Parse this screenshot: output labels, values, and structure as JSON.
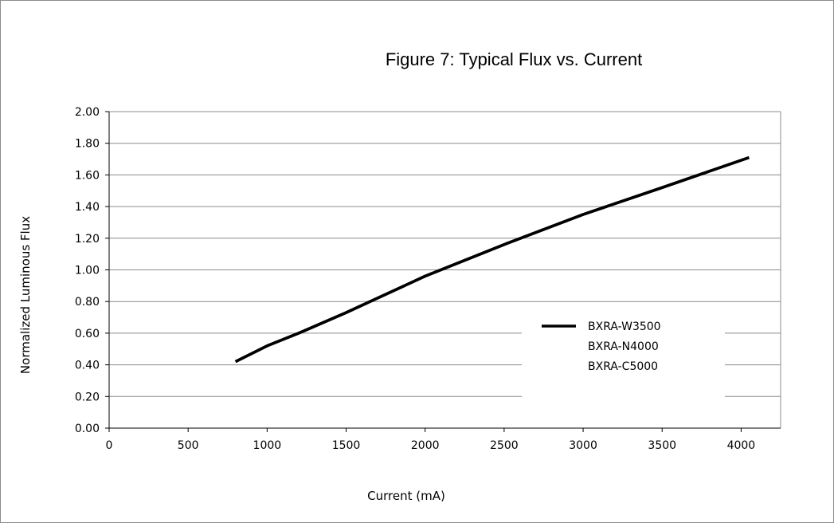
{
  "chart_data": {
    "type": "line",
    "title": "Figure 7:  Typical Flux vs. Current",
    "xlabel": "Current (mA)",
    "ylabel": "Normalized Luminous Flux",
    "xlim": [
      0,
      4250
    ],
    "ylim": [
      0,
      2.0
    ],
    "x_ticks": [
      0,
      500,
      1000,
      1500,
      2000,
      2500,
      3000,
      3500,
      4000
    ],
    "x_tick_labels": [
      "0",
      "500",
      "1000",
      "1500",
      "2000",
      "2500",
      "3000",
      "3500",
      "4000"
    ],
    "y_ticks": [
      0,
      0.2,
      0.4,
      0.6,
      0.8,
      1.0,
      1.2,
      1.4,
      1.6,
      1.8,
      2.0
    ],
    "y_tick_labels": [
      "0.00",
      "0.20",
      "0.40",
      "0.60",
      "0.80",
      "1.00",
      "1.20",
      "1.40",
      "1.60",
      "1.80",
      "2.00"
    ],
    "grid": "horizontal",
    "legend_position": "right",
    "series": [
      {
        "name": "BXRA-W3500",
        "color": "#000000",
        "x": [
          800,
          1000,
          1200,
          1500,
          2000,
          2500,
          3000,
          3500,
          4050
        ],
        "y": [
          0.42,
          0.52,
          0.6,
          0.73,
          0.96,
          1.16,
          1.35,
          1.52,
          1.71
        ]
      },
      {
        "name": "BXRA-N4000",
        "color": "#000000",
        "x": [
          800,
          1000,
          1200,
          1500,
          2000,
          2500,
          3000,
          3500,
          4050
        ],
        "y": [
          0.42,
          0.52,
          0.6,
          0.73,
          0.96,
          1.16,
          1.35,
          1.52,
          1.71
        ]
      },
      {
        "name": "BXRA-C5000",
        "color": "#000000",
        "x": [
          800,
          1000,
          1200,
          1500,
          2000,
          2500,
          3000,
          3500,
          4050
        ],
        "y": [
          0.42,
          0.52,
          0.6,
          0.73,
          0.96,
          1.16,
          1.35,
          1.52,
          1.71
        ]
      }
    ]
  }
}
